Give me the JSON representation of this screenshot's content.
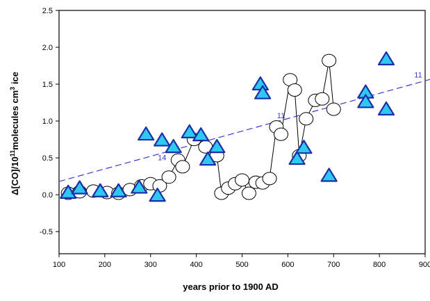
{
  "chart_data": {
    "type": "scatter",
    "xlabel": "years prior to 1900 AD",
    "ylabel_main": "Δ[CO]/10",
    "ylabel_exp": "11",
    "ylabel_mid": "molecules cm",
    "ylabel_exp2": "3",
    "ylabel_tail": " ice",
    "xlim": [
      100,
      900
    ],
    "ylim": [
      -0.8,
      2.5
    ],
    "x_ticks": [
      "100",
      "200",
      "300",
      "400",
      "500",
      "600",
      "700",
      "800",
      "900"
    ],
    "y_ticks": [
      "-0.5",
      "0.0",
      "0.5",
      "1.0",
      "1.5",
      "2.0",
      "2.5"
    ],
    "colors": {
      "triangle_fill": "#2ec8f0",
      "triangle_stroke": "#1a2ea8",
      "circle_fill": "#ffffff",
      "circle_stroke": "#000000",
      "trend": "#3a3ad0"
    },
    "series": [
      {
        "marker": "circle",
        "connected": true,
        "points": [
          [
            120,
            0.02
          ],
          [
            145,
            0.04
          ],
          [
            175,
            0.05
          ],
          [
            205,
            0.03
          ],
          [
            230,
            0.02
          ],
          [
            255,
            0.07
          ],
          [
            280,
            0.12
          ],
          [
            300,
            0.15
          ],
          [
            320,
            0.12
          ],
          [
            340,
            0.24
          ],
          [
            360,
            0.47
          ],
          [
            370,
            0.38
          ],
          [
            395,
            0.75
          ],
          [
            420,
            0.65
          ],
          [
            445,
            0.53
          ],
          [
            455,
            0.02
          ],
          [
            470,
            0.09
          ],
          [
            485,
            0.15
          ],
          [
            500,
            0.2
          ],
          [
            515,
            0.02
          ],
          [
            530,
            0.17
          ],
          [
            545,
            0.16
          ],
          [
            560,
            0.22
          ],
          [
            575,
            0.92
          ],
          [
            585,
            0.82
          ],
          [
            605,
            1.56
          ],
          [
            615,
            1.42
          ],
          [
            625,
            0.53
          ],
          [
            640,
            1.03
          ],
          [
            660,
            1.28
          ],
          [
            675,
            1.3
          ],
          [
            690,
            1.82
          ],
          [
            700,
            1.16
          ]
        ]
      },
      {
        "marker": "triangle",
        "connected": false,
        "points": [
          [
            120,
            0.02
          ],
          [
            145,
            0.08
          ],
          [
            190,
            0.04
          ],
          [
            230,
            0.04
          ],
          [
            275,
            0.09
          ],
          [
            290,
            0.81
          ],
          [
            315,
            -0.02
          ],
          [
            325,
            0.73
          ],
          [
            350,
            0.64
          ],
          [
            385,
            0.84
          ],
          [
            410,
            0.8
          ],
          [
            425,
            0.47
          ],
          [
            445,
            0.64
          ],
          [
            540,
            1.49
          ],
          [
            545,
            1.37
          ],
          [
            620,
            0.48
          ],
          [
            635,
            0.63
          ],
          [
            690,
            0.25
          ],
          [
            770,
            1.38
          ],
          [
            770,
            1.25
          ],
          [
            815,
            1.83
          ],
          [
            815,
            1.15
          ]
        ]
      }
    ],
    "trendline": {
      "x": [
        100,
        920
      ],
      "y": [
        0.18,
        1.58
      ],
      "style": "dashed"
    },
    "annotations": [
      {
        "text": "11",
        "x": 900,
        "y": 1.59
      },
      {
        "text": "11",
        "x": 585,
        "y": 1.04
      },
      {
        "text": "14",
        "x": 325,
        "y": 0.47
      }
    ]
  }
}
